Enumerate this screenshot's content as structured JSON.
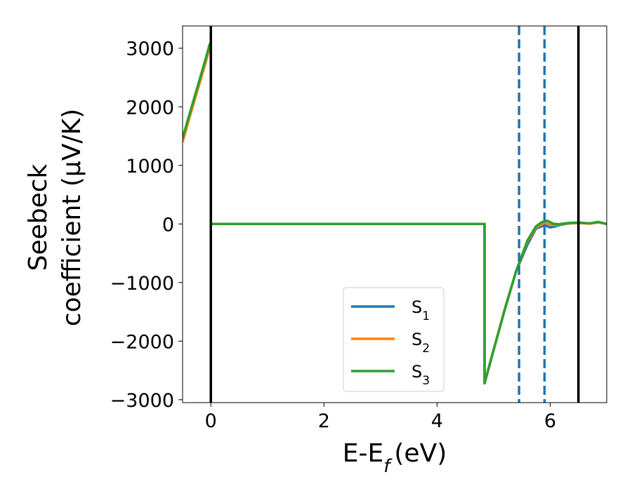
{
  "chart_data": {
    "type": "line",
    "xlabel": "E-E_f (eV)",
    "ylabel_line1": "Seebeck",
    "ylabel_line2": "coefficient  (μV/K)",
    "xlim": [
      -0.5,
      7.0
    ],
    "ylim": [
      -3050,
      3380
    ],
    "x_ticks": [
      0,
      2,
      4,
      6
    ],
    "y_ticks": [
      -3000,
      -2000,
      -1000,
      0,
      1000,
      2000,
      3000
    ],
    "grid": false,
    "legend_position": "lower-center",
    "series": [
      {
        "name": "S1",
        "color": "#1f77b4",
        "points": [
          [
            -0.5,
            1420
          ],
          [
            -0.4,
            1770
          ],
          [
            -0.3,
            2100
          ],
          [
            -0.2,
            2430
          ],
          [
            -0.1,
            2760
          ],
          [
            -0.02,
            3050
          ],
          [
            0.0,
            3060
          ],
          [
            0.0,
            0
          ],
          [
            4.84,
            0
          ],
          [
            4.84,
            -2720
          ],
          [
            5.0,
            -2150
          ],
          [
            5.2,
            -1450
          ],
          [
            5.4,
            -800
          ],
          [
            5.6,
            -350
          ],
          [
            5.75,
            -80
          ],
          [
            5.9,
            -20
          ],
          [
            6.0,
            -60
          ],
          [
            6.1,
            -40
          ],
          [
            6.2,
            -10
          ],
          [
            6.3,
            5
          ],
          [
            6.5,
            20
          ],
          [
            6.7,
            10
          ],
          [
            6.85,
            30
          ],
          [
            7.0,
            0
          ]
        ]
      },
      {
        "name": "S2",
        "color": "#ff7f0e",
        "points": [
          [
            -0.5,
            1400
          ],
          [
            -0.4,
            1740
          ],
          [
            -0.3,
            2070
          ],
          [
            -0.2,
            2400
          ],
          [
            -0.1,
            2730
          ],
          [
            -0.02,
            3020
          ],
          [
            0.0,
            3030
          ],
          [
            0.0,
            0
          ],
          [
            4.84,
            0
          ],
          [
            4.84,
            -2720
          ],
          [
            5.0,
            -2150
          ],
          [
            5.2,
            -1450
          ],
          [
            5.4,
            -800
          ],
          [
            5.6,
            -300
          ],
          [
            5.75,
            -60
          ],
          [
            5.9,
            20
          ],
          [
            6.0,
            -10
          ],
          [
            6.1,
            -20
          ],
          [
            6.2,
            0
          ],
          [
            6.3,
            10
          ],
          [
            6.5,
            15
          ],
          [
            6.7,
            5
          ],
          [
            6.85,
            25
          ],
          [
            7.0,
            0
          ]
        ]
      },
      {
        "name": "S3",
        "color": "#2ca02c",
        "points": [
          [
            -0.5,
            1460
          ],
          [
            -0.4,
            1800
          ],
          [
            -0.3,
            2130
          ],
          [
            -0.2,
            2460
          ],
          [
            -0.1,
            2790
          ],
          [
            -0.02,
            3070
          ],
          [
            0.0,
            3090
          ],
          [
            0.0,
            0
          ],
          [
            4.84,
            0
          ],
          [
            4.84,
            -2720
          ],
          [
            5.0,
            -2150
          ],
          [
            5.2,
            -1450
          ],
          [
            5.4,
            -800
          ],
          [
            5.6,
            -280
          ],
          [
            5.75,
            -40
          ],
          [
            5.85,
            30
          ],
          [
            5.95,
            55
          ],
          [
            6.05,
            5
          ],
          [
            6.15,
            -5
          ],
          [
            6.3,
            15
          ],
          [
            6.5,
            25
          ],
          [
            6.7,
            10
          ],
          [
            6.85,
            35
          ],
          [
            7.0,
            0
          ]
        ]
      }
    ],
    "vertical_lines": [
      {
        "x": 0.0,
        "style": "solid",
        "color": "#000000"
      },
      {
        "x": 5.45,
        "style": "dashed",
        "color": "#1f77b4"
      },
      {
        "x": 5.9,
        "style": "dashed",
        "color": "#1f77b4"
      },
      {
        "x": 6.5,
        "style": "solid",
        "color": "#000000"
      }
    ]
  },
  "legend": {
    "items": [
      {
        "base": "S",
        "sub": "1",
        "color": "#1f77b4"
      },
      {
        "base": "S",
        "sub": "2",
        "color": "#ff7f0e"
      },
      {
        "base": "S",
        "sub": "3",
        "color": "#2ca02c"
      }
    ]
  }
}
